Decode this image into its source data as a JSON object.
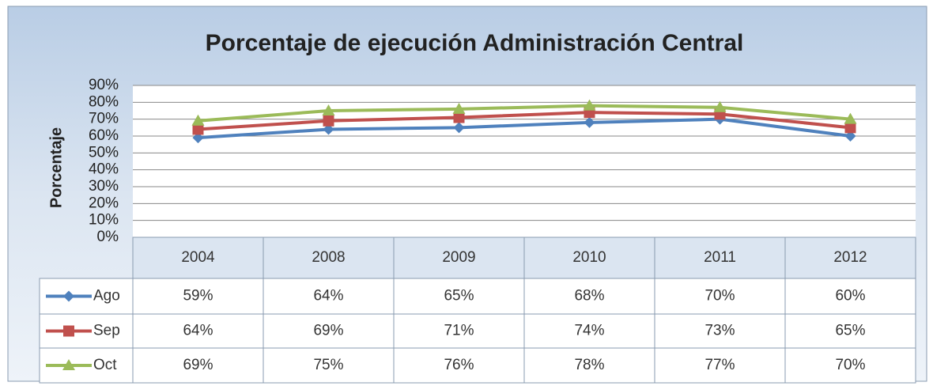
{
  "chart_data": {
    "type": "line",
    "title": "Porcentaje de ejecución Administración Central",
    "y_label": "Porcentaje",
    "categories": [
      "2004",
      "2008",
      "2009",
      "2010",
      "2011",
      "2012"
    ],
    "series": [
      {
        "name": "Ago",
        "color": "#4f81bd",
        "marker": "diamond",
        "values": [
          59,
          64,
          65,
          68,
          70,
          60
        ],
        "value_labels": [
          "59%",
          "64%",
          "65%",
          "68%",
          "70%",
          "60%"
        ]
      },
      {
        "name": "Sep",
        "color": "#c0504d",
        "marker": "square",
        "values": [
          64,
          69,
          71,
          74,
          73,
          65
        ],
        "value_labels": [
          "64%",
          "69%",
          "71%",
          "74%",
          "73%",
          "65%"
        ]
      },
      {
        "name": "Oct",
        "color": "#9bbb59",
        "marker": "triangle",
        "values": [
          69,
          75,
          76,
          78,
          77,
          70
        ],
        "value_labels": [
          "69%",
          "75%",
          "76%",
          "78%",
          "77%",
          "70%"
        ]
      }
    ],
    "ylim": [
      0,
      90
    ],
    "yticks": [
      {
        "value": 0,
        "label": "0%"
      },
      {
        "value": 10,
        "label": "10%"
      },
      {
        "value": 20,
        "label": "20%"
      },
      {
        "value": 30,
        "label": "30%"
      },
      {
        "value": 40,
        "label": "40%"
      },
      {
        "value": 50,
        "label": "50%"
      },
      {
        "value": 60,
        "label": "60%"
      },
      {
        "value": 70,
        "label": "70%"
      },
      {
        "value": 80,
        "label": "80%"
      },
      {
        "value": 90,
        "label": "90%"
      }
    ],
    "grid": true
  }
}
